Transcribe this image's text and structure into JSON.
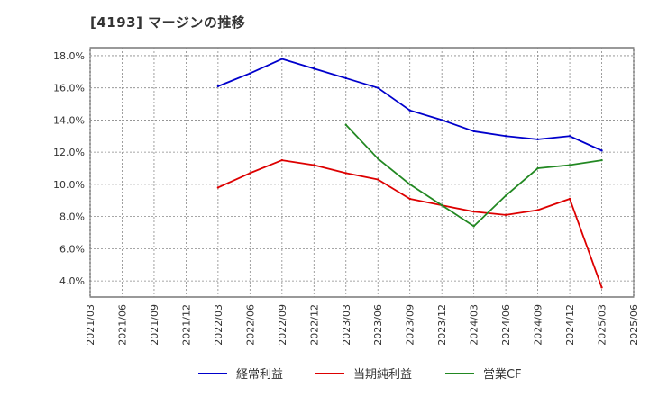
{
  "title": "[4193]  マージンの推移",
  "chart_data": {
    "type": "line",
    "title": "[4193]  マージンの推移",
    "x": [
      "2021/03",
      "2021/06",
      "2021/09",
      "2021/12",
      "2022/03",
      "2022/06",
      "2022/09",
      "2022/12",
      "2023/03",
      "2023/06",
      "2023/09",
      "2023/12",
      "2024/03",
      "2024/06",
      "2024/09",
      "2024/12",
      "2025/03",
      "2025/06"
    ],
    "y_ticks": [
      "4.0%",
      "6.0%",
      "8.0%",
      "10.0%",
      "12.0%",
      "14.0%",
      "16.0%",
      "18.0%"
    ],
    "ylim": [
      3.0,
      18.5
    ],
    "grid": true,
    "legend_position": "bottom",
    "series": [
      {
        "name": "経常利益",
        "color": "#0000cc",
        "values": [
          null,
          null,
          null,
          null,
          16.1,
          16.9,
          17.8,
          17.2,
          16.6,
          16.0,
          14.6,
          14.0,
          13.3,
          13.0,
          12.8,
          13.0,
          12.1,
          null
        ]
      },
      {
        "name": "当期純利益",
        "color": "#dd0000",
        "values": [
          null,
          null,
          null,
          null,
          9.8,
          10.7,
          11.5,
          11.2,
          10.7,
          10.3,
          9.1,
          8.7,
          8.3,
          8.1,
          8.4,
          9.1,
          3.6,
          null
        ]
      },
      {
        "name": "営業CF",
        "color": "#228822",
        "values": [
          null,
          null,
          null,
          null,
          null,
          null,
          null,
          null,
          13.7,
          11.6,
          10.0,
          8.7,
          7.4,
          9.3,
          11.0,
          11.2,
          11.5,
          null
        ]
      }
    ]
  }
}
